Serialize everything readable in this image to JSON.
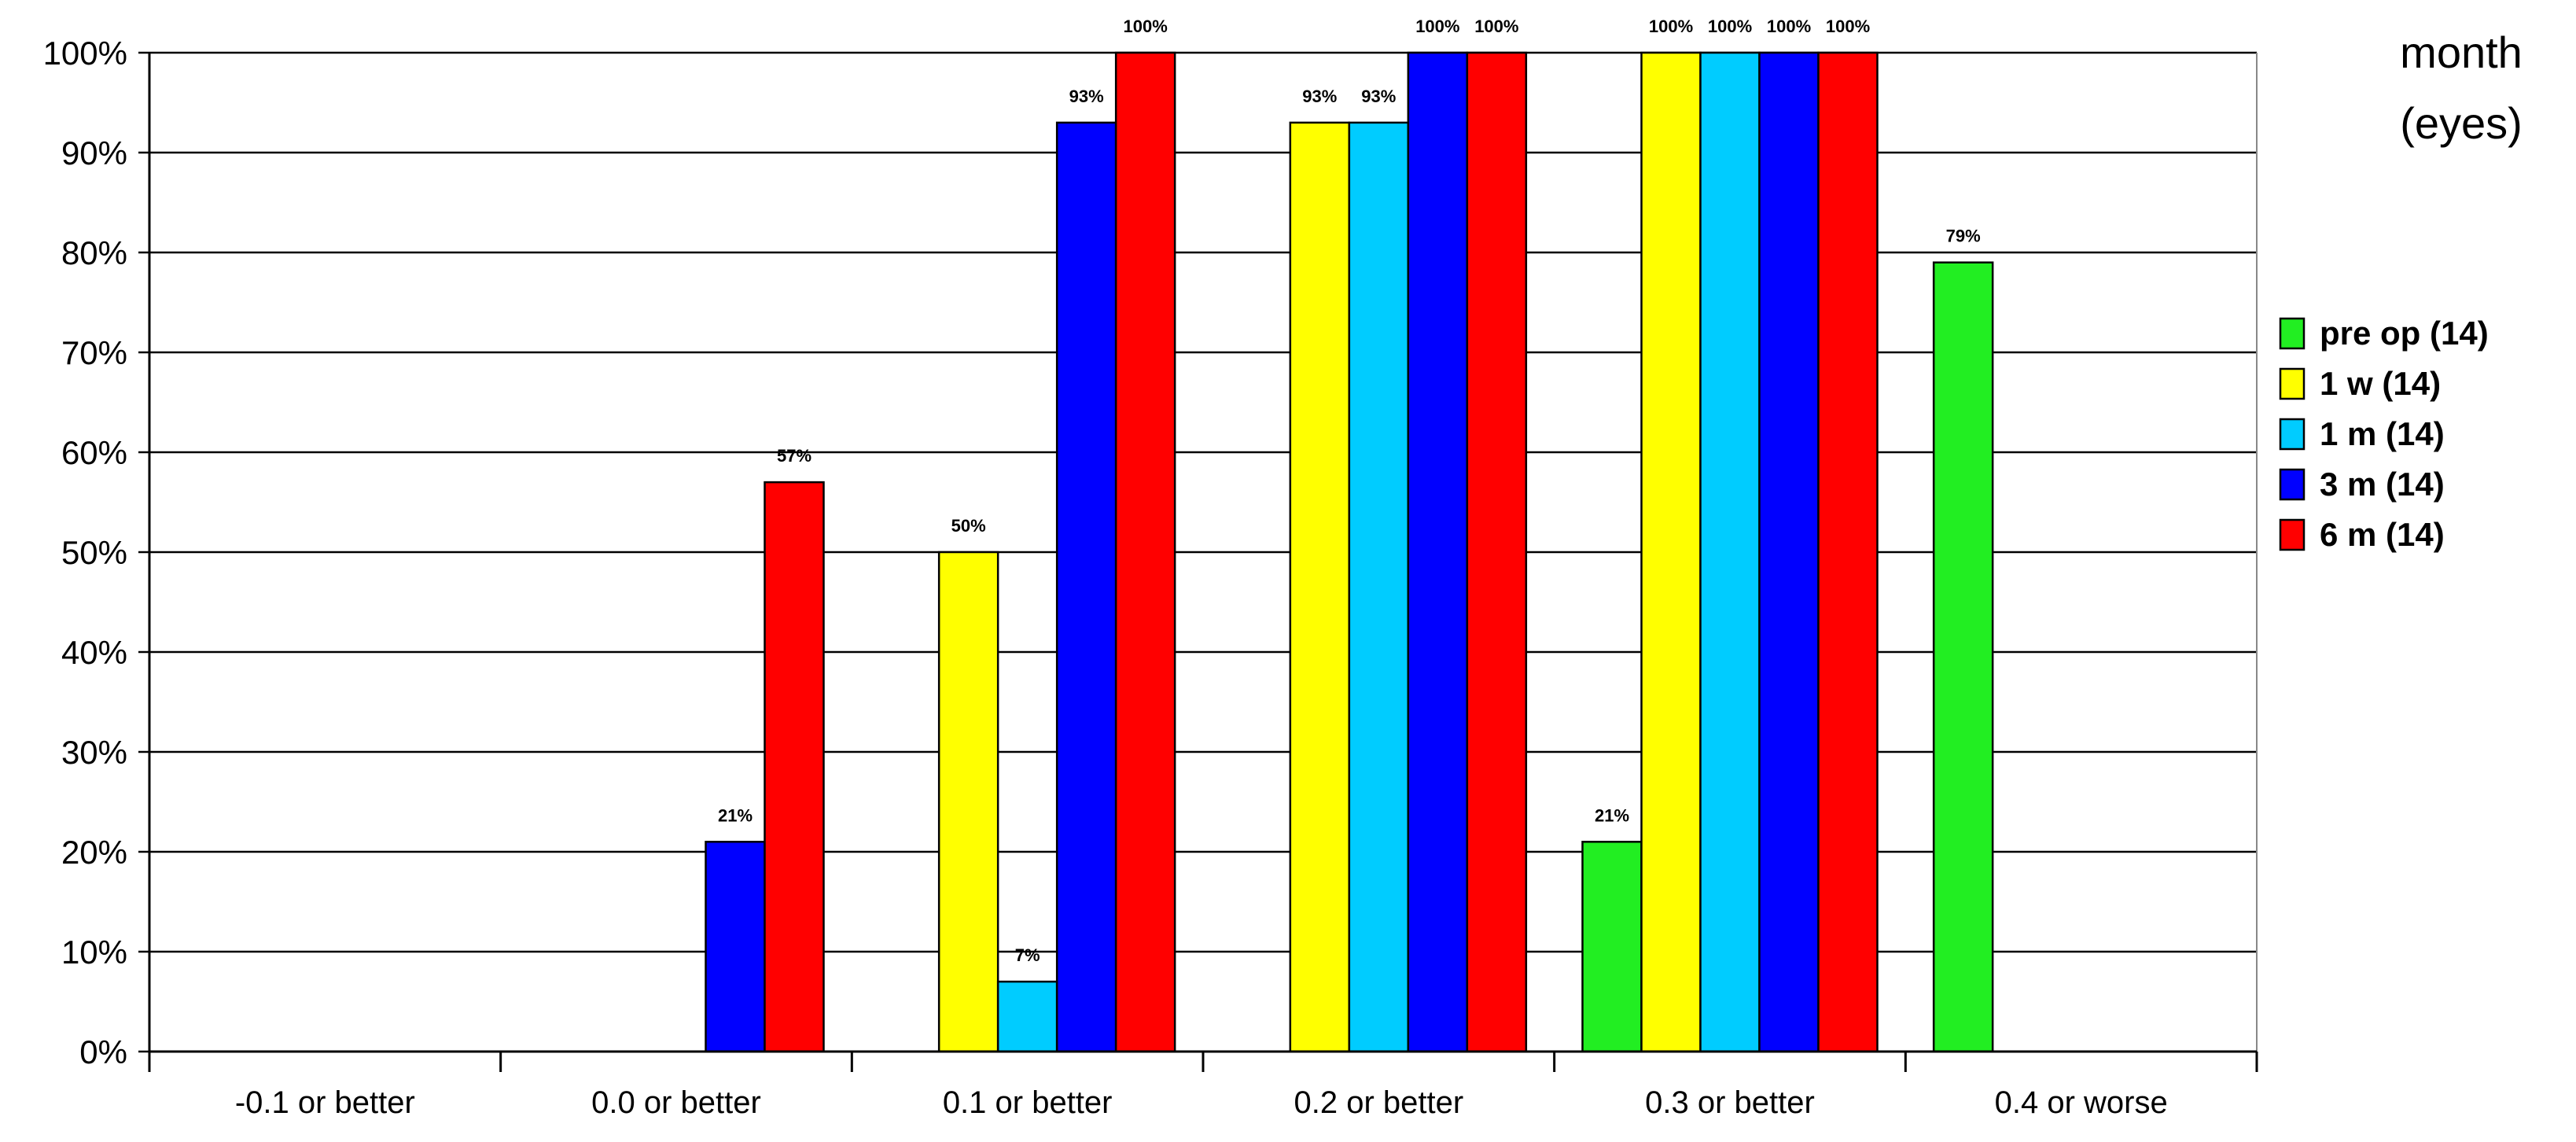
{
  "chart_data": {
    "type": "bar",
    "title": "",
    "xlabel": "",
    "ylabel": "",
    "ylim": [
      0,
      100
    ],
    "y_ticks": [
      "0%",
      "10%",
      "20%",
      "30%",
      "40%",
      "50%",
      "60%",
      "70%",
      "80%",
      "90%",
      "100%"
    ],
    "grid": true,
    "legend_title": [
      "month",
      "(eyes)"
    ],
    "legend_position": "right",
    "categories": [
      "-0.1 or better",
      "0.0 or better",
      "0.1 or better",
      "0.2 or better",
      "0.3 or better",
      "0.4 or worse"
    ],
    "series": [
      {
        "name": "pre op (14)",
        "color": "#22ee22",
        "values": [
          0,
          0,
          0,
          0,
          21,
          79
        ],
        "labels": [
          "",
          "",
          "",
          "",
          "21%",
          "79%"
        ]
      },
      {
        "name": "1 w (14)",
        "color": "#ffff00",
        "values": [
          0,
          0,
          50,
          93,
          100,
          0
        ],
        "labels": [
          "",
          "",
          "50%",
          "93%",
          "100%",
          ""
        ]
      },
      {
        "name": "1 m (14)",
        "color": "#00ccff",
        "values": [
          0,
          0,
          7,
          93,
          100,
          0
        ],
        "labels": [
          "",
          "",
          "7%",
          "93%",
          "100%",
          ""
        ]
      },
      {
        "name": "3 m (14)",
        "color": "#0000ff",
        "values": [
          0,
          21,
          93,
          100,
          100,
          0
        ],
        "labels": [
          "",
          "21%",
          "93%",
          "100%",
          "100%",
          ""
        ]
      },
      {
        "name": "6 m (14)",
        "color": "#ff0000",
        "values": [
          0,
          57,
          100,
          100,
          100,
          0
        ],
        "labels": [
          "",
          "57%",
          "100%",
          "100%",
          "100%",
          ""
        ]
      }
    ]
  }
}
